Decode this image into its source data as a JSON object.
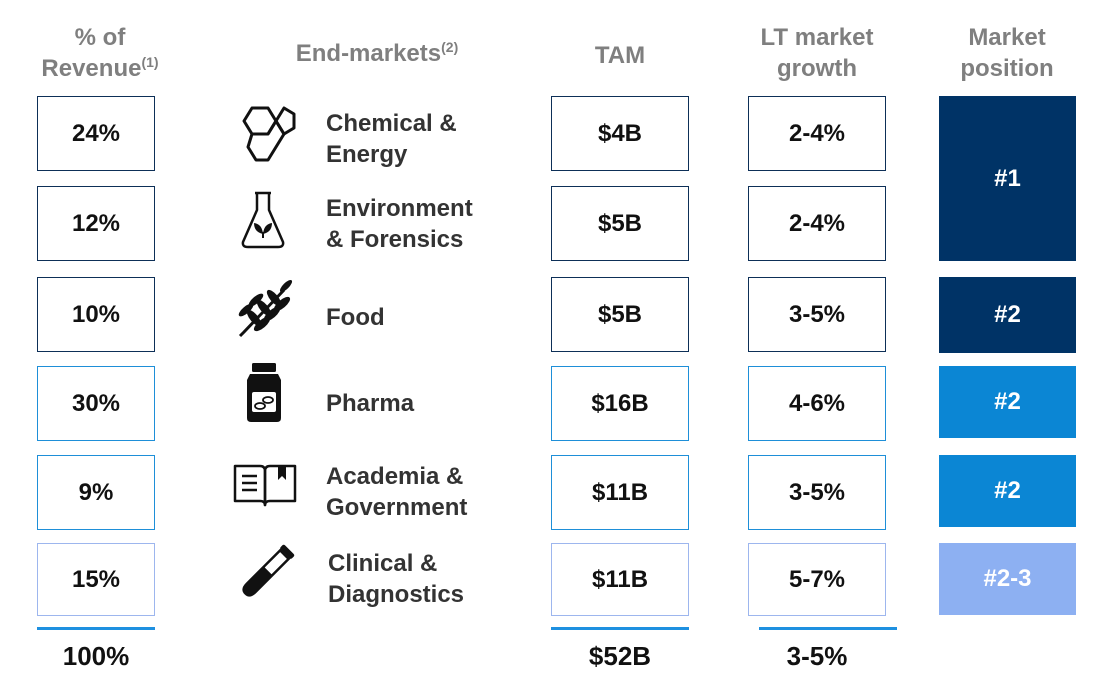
{
  "headers": {
    "revenue": "% of",
    "revenue_line2": "Revenue",
    "revenue_note": "(1)",
    "endmarkets": "End-markets",
    "endmarkets_note": "(2)",
    "tam": "TAM",
    "growth": "LT market",
    "growth_line2": "growth",
    "position": "Market",
    "position_line2": "position"
  },
  "rows": [
    {
      "revenue": "24%",
      "market_line1": "Chemical &",
      "market_line2": "Energy",
      "icon": "hexagon-molecule-icon",
      "tam": "$4B",
      "growth": "2-4%"
    },
    {
      "revenue": "12%",
      "market_line1": "Environment",
      "market_line2": "& Forensics",
      "icon": "flask-leaf-icon",
      "tam": "$5B",
      "growth": "2-4%"
    },
    {
      "revenue": "10%",
      "market_line1": "Food",
      "market_line2": "",
      "icon": "wheat-icon",
      "tam": "$5B",
      "growth": "3-5%"
    },
    {
      "revenue": "30%",
      "market_line1": "Pharma",
      "market_line2": "",
      "icon": "pill-bottle-icon",
      "tam": "$16B",
      "growth": "4-6%"
    },
    {
      "revenue": "9%",
      "market_line1": "Academia &",
      "market_line2": "Government",
      "icon": "open-book-icon",
      "tam": "$11B",
      "growth": "3-5%"
    },
    {
      "revenue": "15%",
      "market_line1": "Clinical &",
      "market_line2": "Diagnostics",
      "icon": "test-tube-icon",
      "tam": "$11B",
      "growth": "5-7%"
    }
  ],
  "positions": [
    {
      "label": "#1",
      "color": "#003366"
    },
    {
      "label": "#2",
      "color": "#003366"
    },
    {
      "label": "#2",
      "color": "#0b86d4"
    },
    {
      "label": "#2",
      "color": "#0b86d4"
    },
    {
      "label": "#2-3",
      "color": "#8db0f2"
    }
  ],
  "border_colors": [
    "#0d2f57",
    "#0d2f57",
    "#0d2f57",
    "#1e8fd8",
    "#1e8fd8",
    "#9db6ee"
  ],
  "totals": {
    "revenue": "100%",
    "tam": "$52B",
    "growth": "3-5%"
  }
}
